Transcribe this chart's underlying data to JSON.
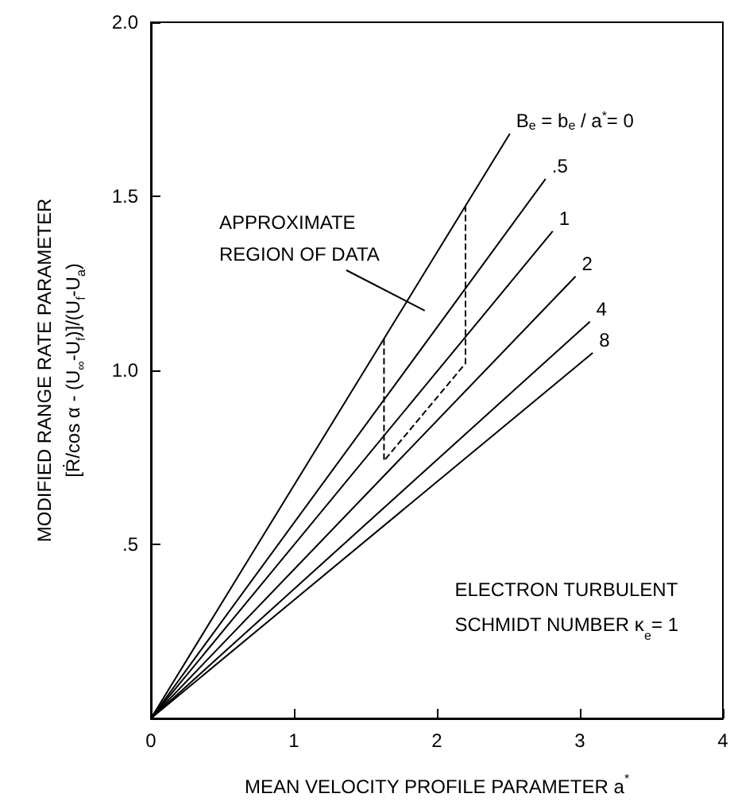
{
  "chart_data": {
    "type": "line",
    "xlabel": "MEAN VELOCITY PROFILE PARAMETER a$^{*}$",
    "ylabel": "MODIFIED RANGE RATE PARAMETER\n[Ṙ/cos α - (U$_{∞}$-U$_{f}$)]/(U$_{f}$-U$_{a}$)",
    "xlim": [
      0,
      4
    ],
    "xticks": [
      0,
      1,
      2,
      3,
      4
    ],
    "ylim": [
      0,
      2
    ],
    "yticks": [
      {
        "value": 0,
        "label": null
      },
      {
        "value": 0.5,
        "label": ".5"
      },
      {
        "value": 1,
        "label": "1.0"
      },
      {
        "value": 1.5,
        "label": "1.5"
      },
      {
        "value": 2,
        "label": "2.0"
      }
    ],
    "series": [
      {
        "name": "B$_{e}$ = b$_{e}$ / a$^{*}$= 0",
        "color": "#000000",
        "x": [
          0,
          2.51
        ],
        "values": [
          0,
          1.68
        ]
      },
      {
        "name": ".5",
        "color": "#000000",
        "x": [
          0,
          2.76
        ],
        "values": [
          0,
          1.55
        ]
      },
      {
        "name": "1",
        "color": "#000000",
        "x": [
          0,
          2.81
        ],
        "values": [
          0,
          1.4
        ]
      },
      {
        "name": "2",
        "color": "#000000",
        "x": [
          0,
          2.97
        ],
        "values": [
          0,
          1.27
        ]
      },
      {
        "name": "4",
        "color": "#000000",
        "x": [
          0,
          3.07
        ],
        "values": [
          0,
          1.14
        ]
      },
      {
        "name": "8",
        "color": "#000000",
        "x": [
          0,
          3.09
        ],
        "values": [
          0,
          1.05
        ]
      },
      {
        "type": "line",
        "line_style": "dashed",
        "color": "#000000",
        "x": [
          1.63,
          1.63,
          2.2,
          2.2
        ],
        "values": [
          1.09,
          0.74,
          1.02,
          1.47
        ]
      }
    ],
    "annotations": [
      "APPROXIMATE\nREGION OF DATA",
      "ELECTRON TURBULENT\nSCHMIDT NUMBER κ$_{e}$= 1"
    ],
    "grid": false,
    "legend": false,
    "marker": "none",
    "line_style": "solid"
  }
}
